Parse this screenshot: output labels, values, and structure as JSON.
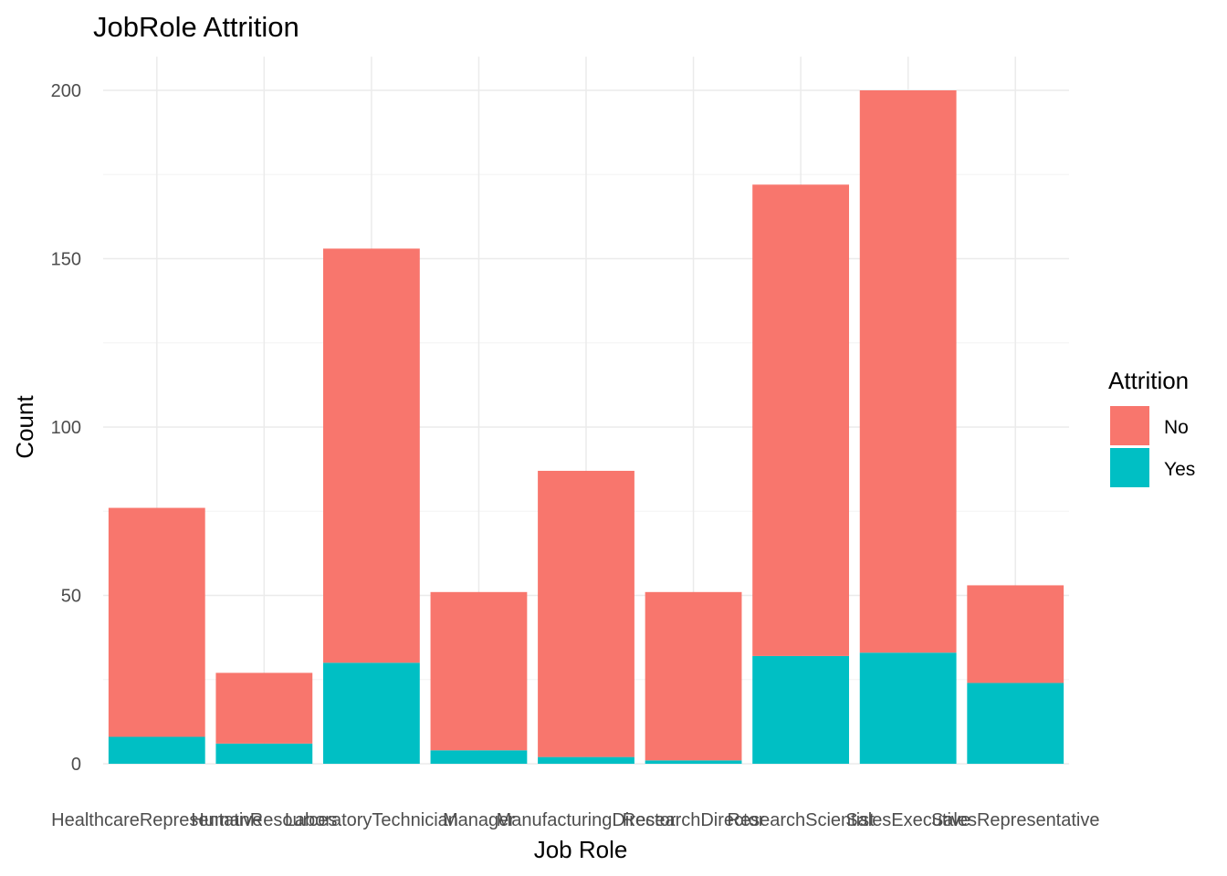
{
  "chart_data": {
    "type": "bar",
    "stacked": true,
    "title": "JobRole Attrition",
    "xlabel": "Job Role",
    "ylabel": "Count",
    "ylim": [
      0,
      210
    ],
    "yticks": [
      0,
      50,
      100,
      150,
      200
    ],
    "grid": true,
    "legend": {
      "title": "Attrition",
      "placement": "right"
    },
    "categories": [
      "HealthcareRepresentative",
      "HumanResources",
      "LaboratoryTechnician",
      "Manager",
      "ManufacturingDirector",
      "ResearchDirector",
      "ResearchScientist",
      "SalesExecutive",
      "SalesRepresentative"
    ],
    "series": [
      {
        "name": "No",
        "color": "#F8766D",
        "values": [
          68,
          21,
          123,
          47,
          85,
          50,
          140,
          167,
          29
        ]
      },
      {
        "name": "Yes",
        "color": "#00BFC4",
        "values": [
          8,
          6,
          30,
          4,
          2,
          1,
          32,
          33,
          24
        ]
      }
    ]
  }
}
